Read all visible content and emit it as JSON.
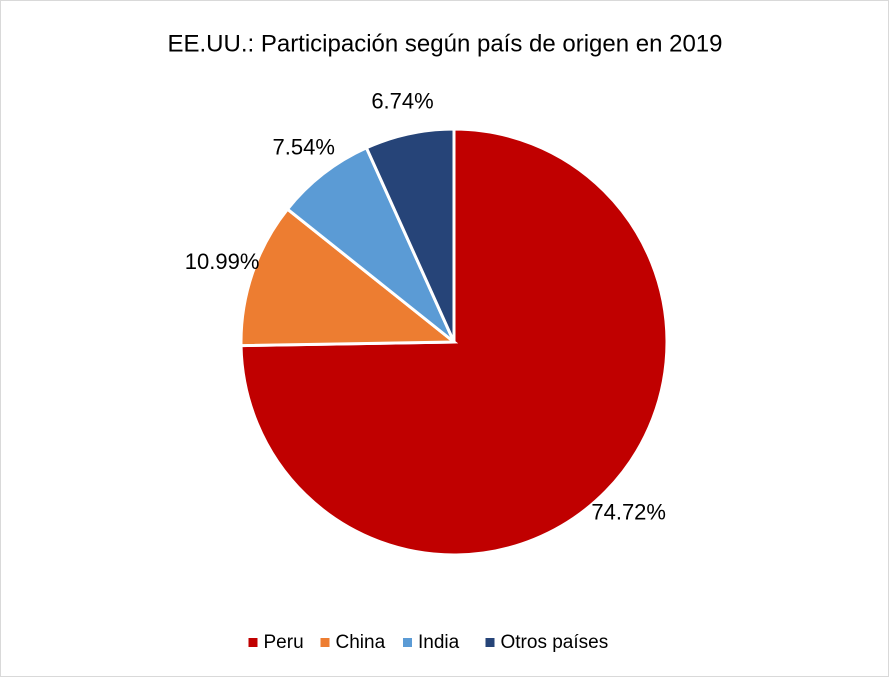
{
  "chart_data": {
    "type": "pie",
    "title": "EE.UU.: Participación según país de origen en 2019",
    "categories": [
      "Peru",
      "China",
      "India",
      "Otros países"
    ],
    "values": [
      74.72,
      10.99,
      7.54,
      6.74
    ],
    "value_labels": [
      "74.72%",
      "10.99%",
      "7.54%",
      "6.74%"
    ],
    "colors": [
      "#c00000",
      "#ed7d31",
      "#5b9bd5",
      "#264478"
    ],
    "legend": "bottom"
  }
}
